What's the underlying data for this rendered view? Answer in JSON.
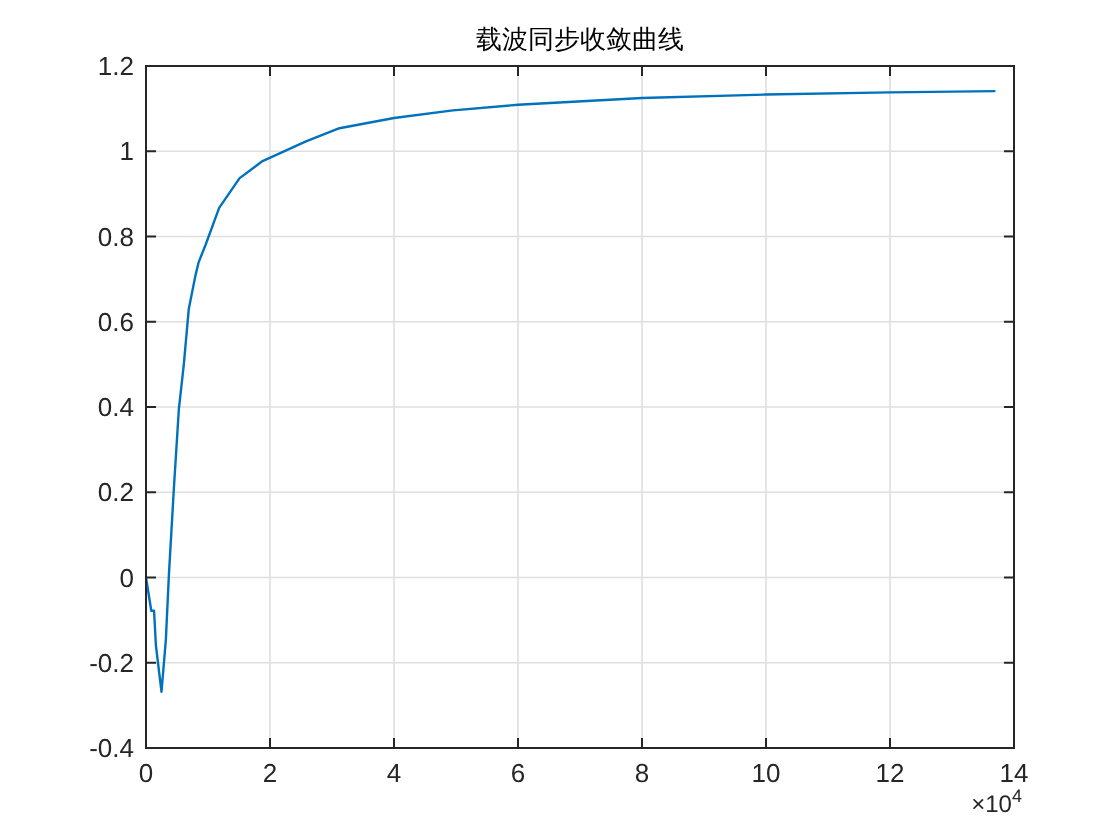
{
  "chart_data": {
    "type": "line",
    "title": "载波同步收敛曲线",
    "x": [
      0,
      0.085,
      0.13,
      0.16,
      0.25,
      0.32,
      0.37,
      0.45,
      0.53,
      0.61,
      0.69,
      0.8,
      0.85,
      0.96,
      1.18,
      1.51,
      1.88,
      2.58,
      3.12,
      4,
      4.95,
      6,
      8,
      10,
      12,
      13.7
    ],
    "series": [
      {
        "color": "#0072bd",
        "values": [
          0,
          -0.078,
          -0.078,
          -0.16,
          -0.268,
          -0.147,
          0.008,
          0.21,
          0.395,
          0.5,
          0.63,
          0.71,
          0.74,
          0.78,
          0.867,
          0.937,
          0.977,
          1.023,
          1.054,
          1.078,
          1.096,
          1.109,
          1.125,
          1.133,
          1.138,
          1.141
        ]
      }
    ],
    "xlim": [
      0,
      14
    ],
    "ylim": [
      -0.4,
      1.2
    ],
    "xticks": [
      0,
      2,
      4,
      6,
      8,
      10,
      12,
      14
    ],
    "yticks": [
      {
        "value": -0.4,
        "label": "-0.4"
      },
      {
        "value": -0.2,
        "label": "-0.2"
      },
      0,
      {
        "value": 0.2,
        "label": "0.2"
      },
      {
        "value": 0.4,
        "label": "0.4"
      },
      {
        "value": 0.6,
        "label": "0.6"
      },
      {
        "value": 0.8,
        "label": "0.8"
      },
      1,
      {
        "value": 1.2,
        "label": "1.2"
      }
    ],
    "grid": true,
    "annotations": [
      "×10$^{4}$"
    ]
  }
}
